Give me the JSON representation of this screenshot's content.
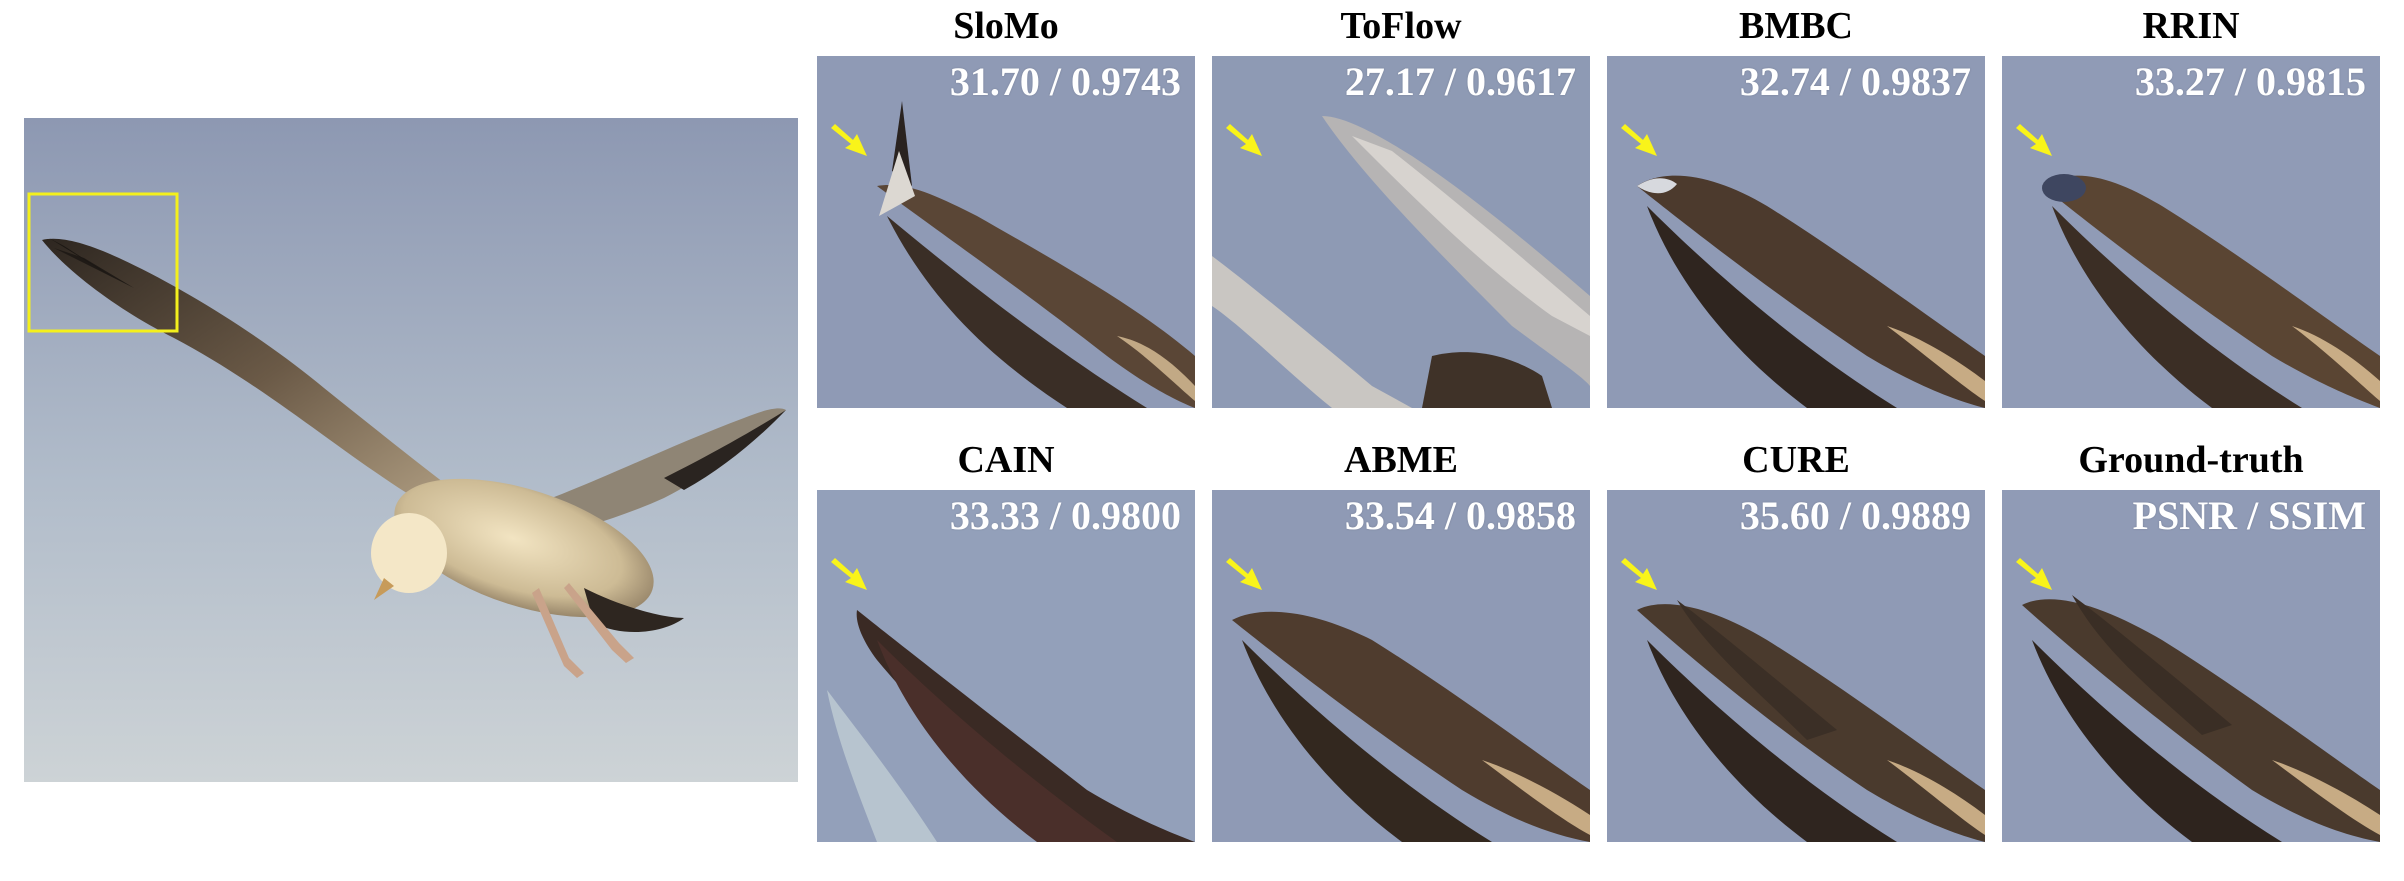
{
  "panels": [
    {
      "title": "SloMo",
      "metric": "31.70 / 0.9743"
    },
    {
      "title": "ToFlow",
      "metric": "27.17 / 0.9617"
    },
    {
      "title": "BMBC",
      "metric": "32.74 / 0.9837"
    },
    {
      "title": "RRIN",
      "metric": "33.27 / 0.9815"
    },
    {
      "title": "CAIN",
      "metric": "33.33 / 0.9800"
    },
    {
      "title": "ABME",
      "metric": "33.54 / 0.9858"
    },
    {
      "title": "CURE",
      "metric": "35.60 / 0.9889"
    },
    {
      "title": "Ground-truth",
      "metric": "PSNR / SSIM"
    }
  ],
  "colors": {
    "highlight_box": "#f4f01c",
    "arrow": "#f9f41a",
    "sky_top": "#8f9ab3",
    "sky_bottom": "#c8cfd6",
    "crop_bg": "#8f9ab5"
  }
}
